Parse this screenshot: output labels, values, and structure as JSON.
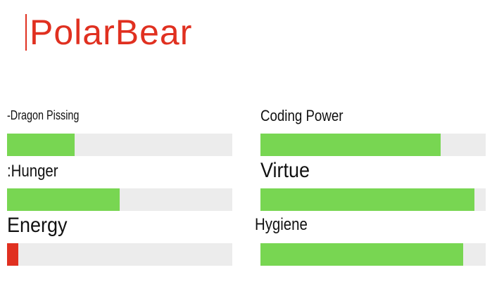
{
  "app": {
    "title": "PolarBear"
  },
  "colors": {
    "accent": "#e03020",
    "fill_good": "#78d652",
    "fill_low": "#e03020",
    "track": "#ececec"
  },
  "stats": [
    {
      "label": "-Dragon Pissing",
      "level": 0.3,
      "color": "#78d652"
    },
    {
      "label": "Coding Power",
      "level": 0.8,
      "color": "#78d652"
    },
    {
      "label": ":Hunger",
      "level": 0.5,
      "color": "#78d652"
    },
    {
      "label": "Virtue",
      "level": 0.95,
      "color": "#78d652"
    },
    {
      "label": "Energy",
      "level": 0.05,
      "color": "#e03020"
    },
    {
      "label": "Hygiene",
      "level": 0.9,
      "color": "#78d652"
    }
  ]
}
